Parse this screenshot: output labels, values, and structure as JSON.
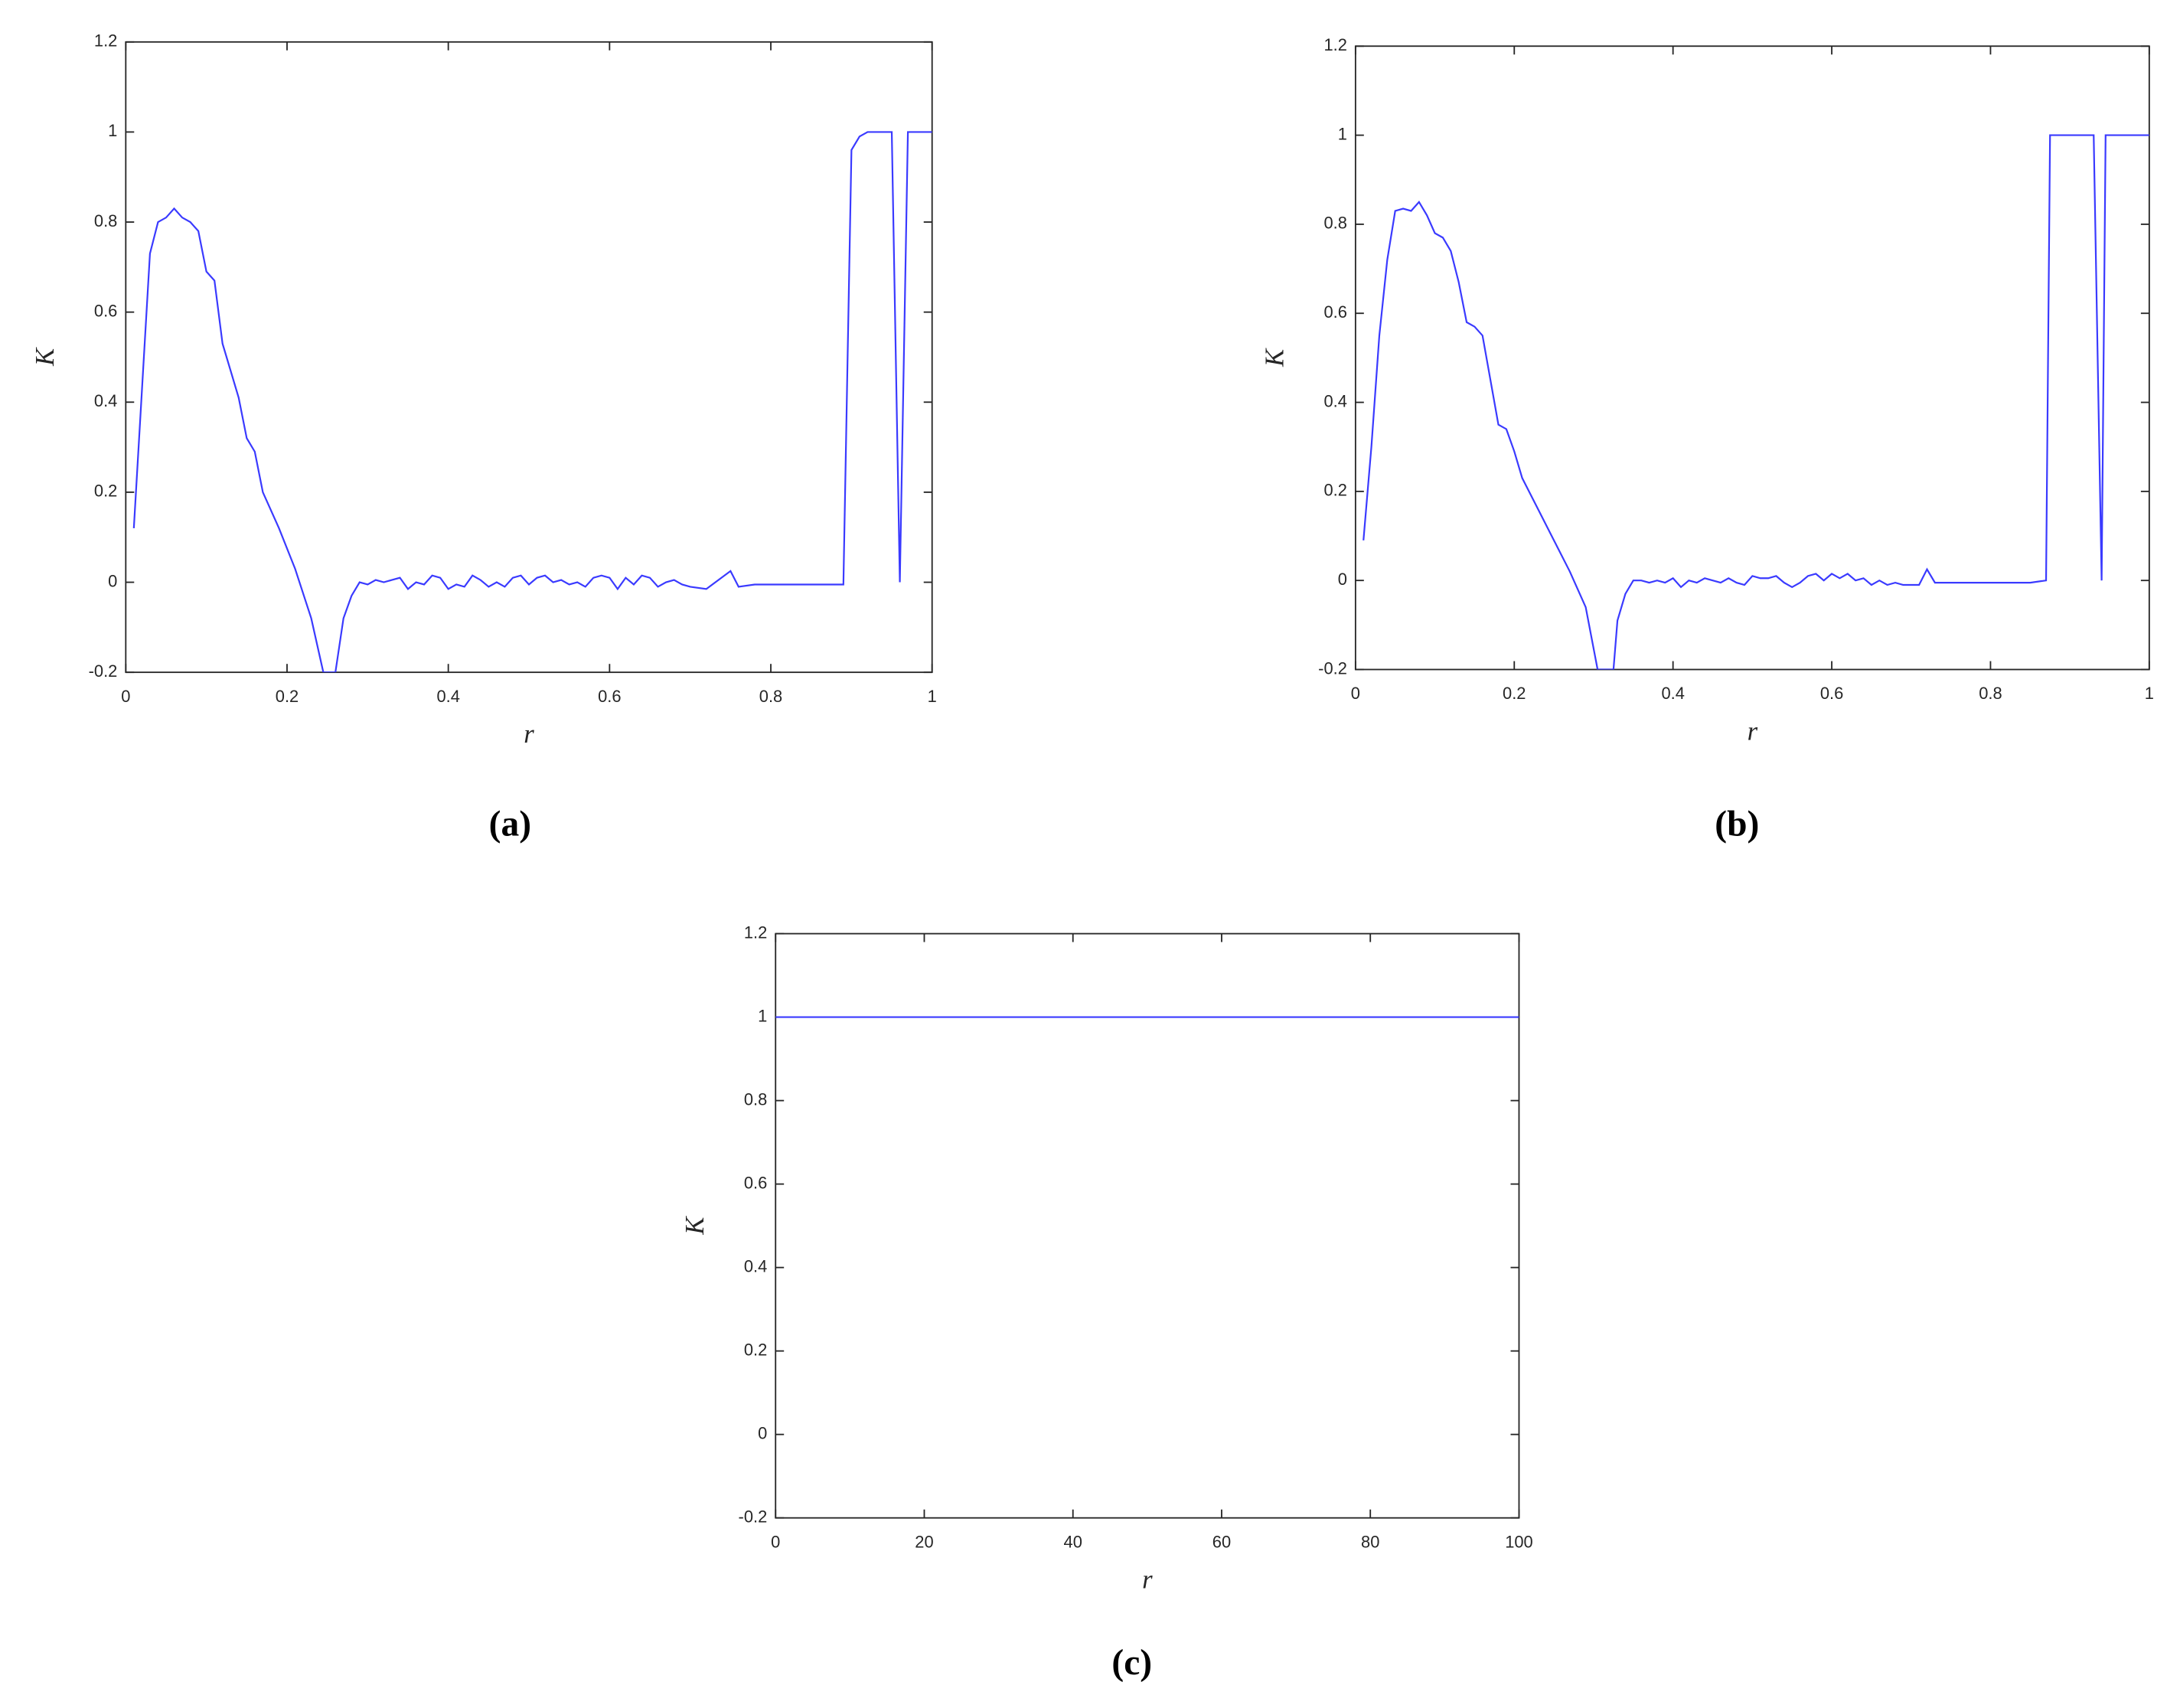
{
  "chart_data": [
    {
      "type": "line",
      "caption": "(a)",
      "xlabel": "r",
      "ylabel": "K",
      "xlim": [
        0,
        1
      ],
      "ylim": [
        -0.2,
        1.2
      ],
      "xticks": [
        0,
        0.2,
        0.4,
        0.6,
        0.8,
        1
      ],
      "yticks": [
        -0.2,
        0,
        0.2,
        0.4,
        0.6,
        0.8,
        1,
        1.2
      ],
      "x": [
        0.01,
        0.03,
        0.04,
        0.05,
        0.06,
        0.07,
        0.08,
        0.09,
        0.1,
        0.11,
        0.12,
        0.13,
        0.14,
        0.15,
        0.16,
        0.17,
        0.19,
        0.21,
        0.23,
        0.245,
        0.26,
        0.27,
        0.28,
        0.29,
        0.3,
        0.31,
        0.32,
        0.33,
        0.34,
        0.35,
        0.36,
        0.37,
        0.38,
        0.39,
        0.4,
        0.41,
        0.42,
        0.43,
        0.44,
        0.45,
        0.46,
        0.47,
        0.48,
        0.49,
        0.5,
        0.51,
        0.52,
        0.53,
        0.54,
        0.55,
        0.56,
        0.57,
        0.58,
        0.59,
        0.6,
        0.61,
        0.62,
        0.63,
        0.64,
        0.65,
        0.66,
        0.67,
        0.68,
        0.69,
        0.7,
        0.72,
        0.75,
        0.76,
        0.78,
        0.8,
        0.85,
        0.89,
        0.9,
        0.91,
        0.92,
        0.95,
        0.96,
        0.97,
        0.99,
        1
      ],
      "series": [
        {
          "color": "#3a3aff",
          "values": [
            0.12,
            0.73,
            0.8,
            0.81,
            0.83,
            0.81,
            0.8,
            0.78,
            0.69,
            0.67,
            0.53,
            0.47,
            0.41,
            0.32,
            0.29,
            0.2,
            0.12,
            0.03,
            -0.08,
            -0.2,
            -0.2,
            -0.08,
            -0.03,
            0,
            -0.005,
            0.005,
            0,
            0.005,
            0.01,
            -0.015,
            0,
            -0.005,
            0.015,
            0.01,
            -0.015,
            -0.005,
            -0.01,
            0.015,
            0.005,
            -0.01,
            0,
            -0.01,
            0.01,
            0.015,
            -0.005,
            0.01,
            0.015,
            0,
            0.005,
            -0.005,
            0,
            -0.01,
            0.01,
            0.015,
            0.01,
            -0.015,
            0.01,
            -0.005,
            0.015,
            0.01,
            -0.01,
            0,
            0.005,
            -0.005,
            -0.01,
            -0.015,
            0.025,
            -0.01,
            -0.005,
            -0.005,
            -0.005,
            -0.005,
            0.96,
            0.99,
            1,
            1,
            0,
            1,
            1,
            1
          ]
        }
      ]
    },
    {
      "type": "line",
      "caption": "(b)",
      "xlabel": "r",
      "ylabel": "K",
      "xlim": [
        0,
        1
      ],
      "ylim": [
        -0.2,
        1.2
      ],
      "xticks": [
        0,
        0.2,
        0.4,
        0.6,
        0.8,
        1
      ],
      "yticks": [
        -0.2,
        0,
        0.2,
        0.4,
        0.6,
        0.8,
        1,
        1.2
      ],
      "x": [
        0.01,
        0.02,
        0.03,
        0.04,
        0.05,
        0.06,
        0.07,
        0.08,
        0.09,
        0.1,
        0.11,
        0.12,
        0.13,
        0.14,
        0.15,
        0.16,
        0.17,
        0.18,
        0.19,
        0.2,
        0.21,
        0.23,
        0.25,
        0.27,
        0.29,
        0.305,
        0.325,
        0.33,
        0.34,
        0.35,
        0.36,
        0.37,
        0.38,
        0.39,
        0.4,
        0.41,
        0.42,
        0.43,
        0.44,
        0.45,
        0.46,
        0.47,
        0.48,
        0.49,
        0.5,
        0.51,
        0.52,
        0.53,
        0.54,
        0.55,
        0.56,
        0.57,
        0.58,
        0.59,
        0.6,
        0.61,
        0.62,
        0.63,
        0.64,
        0.65,
        0.66,
        0.67,
        0.68,
        0.69,
        0.7,
        0.71,
        0.72,
        0.73,
        0.75,
        0.8,
        0.85,
        0.87,
        0.875,
        0.93,
        0.94,
        0.945,
        0.99,
        1
      ],
      "series": [
        {
          "color": "#3a3aff",
          "values": [
            0.09,
            0.3,
            0.55,
            0.72,
            0.83,
            0.835,
            0.83,
            0.85,
            0.82,
            0.78,
            0.77,
            0.74,
            0.67,
            0.58,
            0.57,
            0.55,
            0.45,
            0.35,
            0.34,
            0.29,
            0.23,
            0.16,
            0.09,
            0.02,
            -0.06,
            -0.2,
            -0.2,
            -0.09,
            -0.03,
            0,
            0,
            -0.005,
            0,
            -0.005,
            0.005,
            -0.015,
            0,
            -0.005,
            0.005,
            0,
            -0.005,
            0.005,
            -0.005,
            -0.01,
            0.01,
            0.005,
            0.005,
            0.01,
            -0.005,
            -0.015,
            -0.005,
            0.01,
            0.015,
            0,
            0.015,
            0.005,
            0.015,
            0,
            0.005,
            -0.01,
            0,
            -0.01,
            -0.005,
            -0.01,
            -0.01,
            -0.01,
            0.025,
            -0.005,
            -0.005,
            -0.005,
            -0.005,
            0,
            1,
            1,
            0,
            1,
            1,
            1
          ]
        }
      ]
    },
    {
      "type": "line",
      "caption": "(c)",
      "xlabel": "r",
      "ylabel": "K",
      "xlim": [
        0,
        100
      ],
      "ylim": [
        -0.2,
        1.2
      ],
      "xticks": [
        0,
        20,
        40,
        60,
        80,
        100
      ],
      "yticks": [
        -0.2,
        0,
        0.2,
        0.4,
        0.6,
        0.8,
        1,
        1.2
      ],
      "x": [
        0,
        10,
        20,
        30,
        40,
        50,
        60,
        70,
        80,
        90,
        100
      ],
      "series": [
        {
          "color": "#3a3aff",
          "values": [
            1,
            1,
            1,
            1,
            1,
            1,
            1,
            1,
            1,
            1,
            1
          ]
        }
      ]
    }
  ]
}
